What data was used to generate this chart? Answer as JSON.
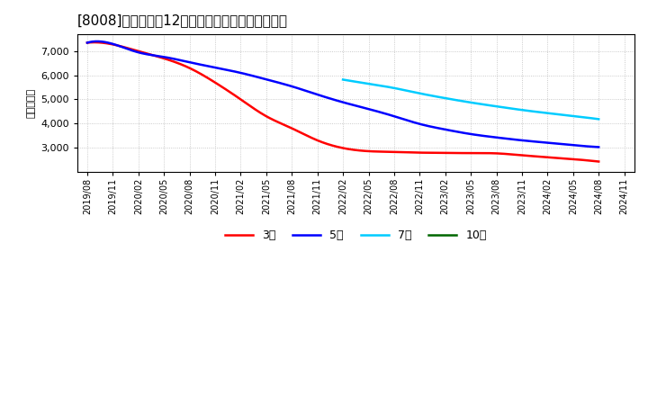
{
  "title": "[8008]　経常利益12か月移動合計の平均値の推移",
  "ylabel": "（百万円）",
  "background_color": "#ffffff",
  "plot_bg_color": "#ffffff",
  "grid_color": "#aaaaaa",
  "ylim": [
    2000,
    7700
  ],
  "yticks": [
    3000,
    4000,
    5000,
    6000,
    7000
  ],
  "series_3": {
    "color": "#ff0000",
    "points_x": [
      2019.583,
      2019.833,
      2020.083,
      2020.333,
      2020.583,
      2020.833,
      2021.083,
      2021.333,
      2021.583,
      2021.833,
      2022.083,
      2022.333,
      2022.583,
      2022.833,
      2023.083,
      2023.333,
      2023.583,
      2023.833,
      2024.083,
      2024.333,
      2024.583
    ],
    "points_y": [
      7350,
      7280,
      7000,
      6700,
      6300,
      5700,
      5000,
      4300,
      3800,
      3300,
      2980,
      2850,
      2820,
      2790,
      2780,
      2770,
      2760,
      2680,
      2600,
      2520,
      2420
    ]
  },
  "series_5": {
    "color": "#0000ff",
    "points_x": [
      2019.583,
      2019.833,
      2020.083,
      2020.333,
      2020.583,
      2020.833,
      2021.083,
      2021.333,
      2021.583,
      2021.833,
      2022.083,
      2022.333,
      2022.583,
      2022.833,
      2023.083,
      2023.333,
      2023.583,
      2023.833,
      2024.083,
      2024.333,
      2024.583
    ],
    "points_y": [
      7350,
      7300,
      6950,
      6760,
      6540,
      6320,
      6100,
      5830,
      5540,
      5200,
      4880,
      4600,
      4300,
      3980,
      3750,
      3560,
      3420,
      3300,
      3200,
      3100,
      3020
    ]
  },
  "series_7": {
    "color": "#00ccff",
    "points_x": [
      2022.083,
      2022.333,
      2022.583,
      2022.833,
      2023.083,
      2023.333,
      2023.583,
      2023.833,
      2024.083,
      2024.333,
      2024.583
    ],
    "points_y": [
      5820,
      5650,
      5470,
      5250,
      5050,
      4870,
      4710,
      4560,
      4430,
      4310,
      4180
    ]
  },
  "legend": {
    "3年": "#ff0000",
    "5年": "#0000ff",
    "7年": "#00ccff",
    "10年": "#006600"
  },
  "x_tick_labels": [
    "2019/08",
    "2019/11",
    "2020/02",
    "2020/05",
    "2020/08",
    "2020/11",
    "2021/02",
    "2021/05",
    "2021/08",
    "2021/11",
    "2022/02",
    "2022/05",
    "2022/08",
    "2022/11",
    "2023/02",
    "2023/05",
    "2023/08",
    "2023/11",
    "2024/02",
    "2024/05",
    "2024/08",
    "2024/11"
  ]
}
